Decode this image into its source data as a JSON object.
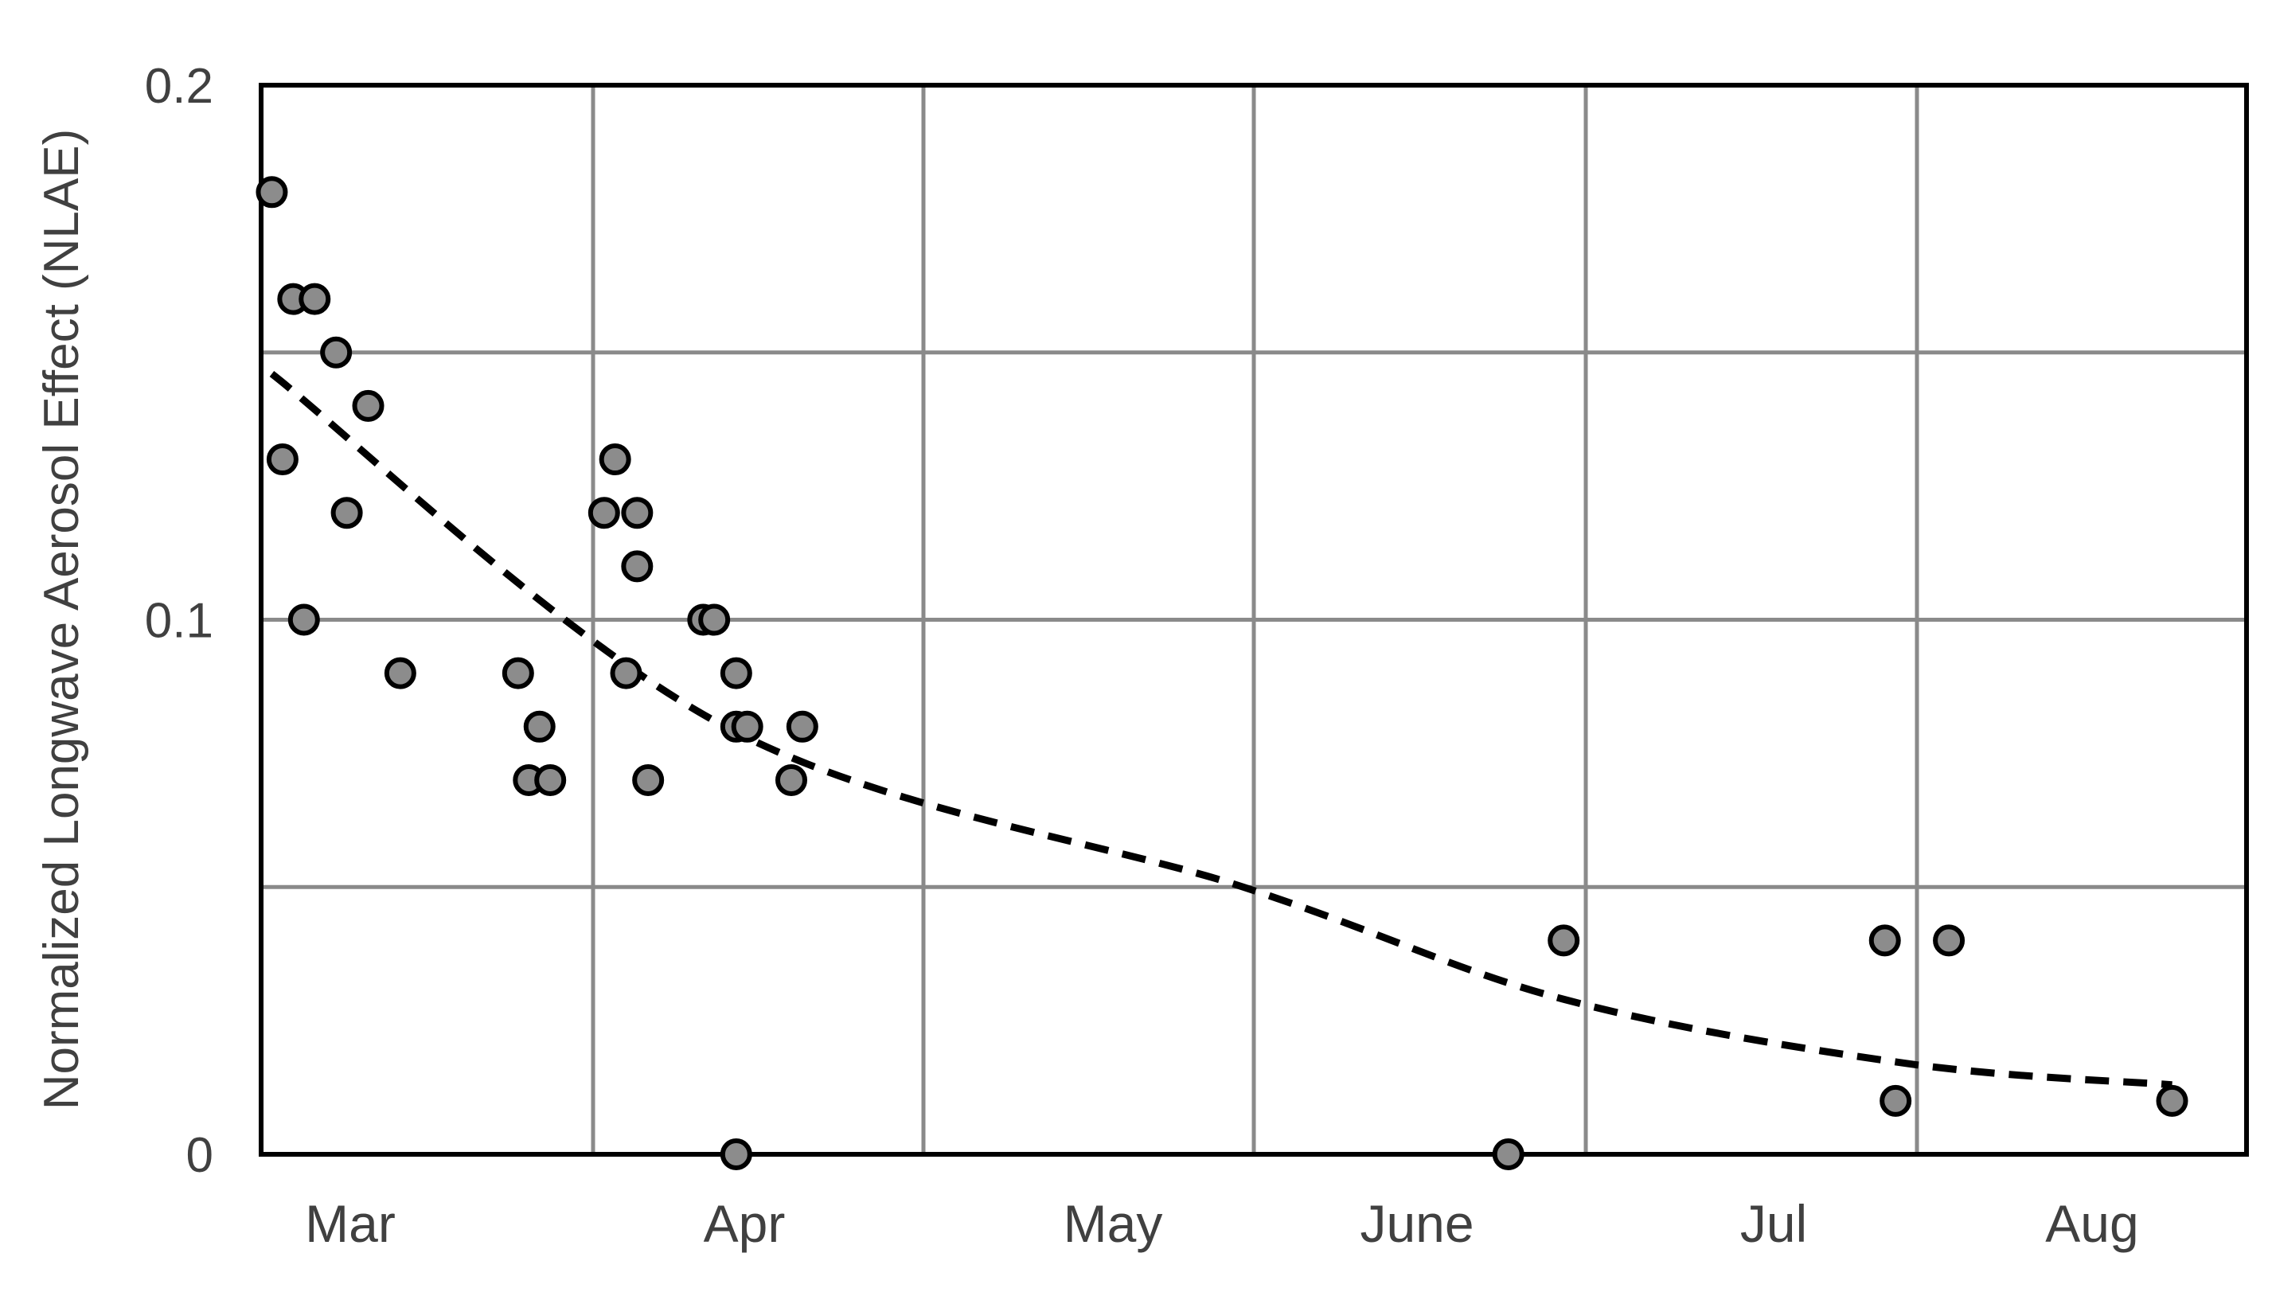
{
  "chart_data": {
    "type": "scatter",
    "ylabel": "Normalized Longwave Aerosol Effect (NLAE)",
    "xlabel": "",
    "x_categories": [
      "Mar",
      "Apr",
      "May",
      "June",
      "Jul",
      "Aug"
    ],
    "ylim": [
      0,
      0.2
    ],
    "y_ticks": [
      {
        "value": 0,
        "label": "0"
      },
      {
        "value": 0.1,
        "label": "0.1"
      },
      {
        "value": 0.2,
        "label": "0.2"
      }
    ],
    "y_gridlines": [
      0.05,
      0.1,
      0.15
    ],
    "grid": true,
    "points": [
      {
        "x": "Mar 2",
        "y": 0.18
      },
      {
        "x": "Mar 3",
        "y": 0.13
      },
      {
        "x": "Mar 4",
        "y": 0.16
      },
      {
        "x": "Mar 5",
        "y": 0.1
      },
      {
        "x": "Mar 6",
        "y": 0.16
      },
      {
        "x": "Mar 8",
        "y": 0.15
      },
      {
        "x": "Mar 9",
        "y": 0.12
      },
      {
        "x": "Mar 11",
        "y": 0.14
      },
      {
        "x": "Mar 14",
        "y": 0.09
      },
      {
        "x": "Mar 25",
        "y": 0.09
      },
      {
        "x": "Mar 26",
        "y": 0.07
      },
      {
        "x": "Mar 27",
        "y": 0.08
      },
      {
        "x": "Mar 28",
        "y": 0.07
      },
      {
        "x": "Apr 2",
        "y": 0.12
      },
      {
        "x": "Apr 3",
        "y": 0.13
      },
      {
        "x": "Apr 4",
        "y": 0.09
      },
      {
        "x": "Apr 5",
        "y": 0.11
      },
      {
        "x": "Apr 5",
        "y": 0.12
      },
      {
        "x": "Apr 6",
        "y": 0.07
      },
      {
        "x": "Apr 11",
        "y": 0.1
      },
      {
        "x": "Apr 12",
        "y": 0.1
      },
      {
        "x": "Apr 14",
        "y": 0.09
      },
      {
        "x": "Apr 14",
        "y": 0.08
      },
      {
        "x": "Apr 15",
        "y": 0.08
      },
      {
        "x": "Apr 14",
        "y": 0.0
      },
      {
        "x": "Apr 19",
        "y": 0.07
      },
      {
        "x": "Apr 20",
        "y": 0.08
      },
      {
        "x": "June 24",
        "y": 0.0
      },
      {
        "x": "June 29",
        "y": 0.04
      },
      {
        "x": "Jul 29",
        "y": 0.04
      },
      {
        "x": "Jul 30",
        "y": 0.01
      },
      {
        "x": "Aug 4",
        "y": 0.04
      },
      {
        "x": "Aug 25",
        "y": 0.01
      }
    ],
    "trend_line": {
      "style": "dashed",
      "points": [
        {
          "x": "Mar 2",
          "y": 0.146
        },
        {
          "x": "Apr 13",
          "y": 0.08
        },
        {
          "x": "May 31",
          "y": 0.05
        },
        {
          "x": "June 29",
          "y": 0.029
        },
        {
          "x": "Jul 31",
          "y": 0.017
        },
        {
          "x": "Aug 25",
          "y": 0.013
        }
      ]
    },
    "colors": {
      "point_fill": "#8c8c8c",
      "point_stroke": "#000000",
      "grid": "#8a8a8a",
      "trend": "#000000",
      "frame": "#000000"
    }
  }
}
